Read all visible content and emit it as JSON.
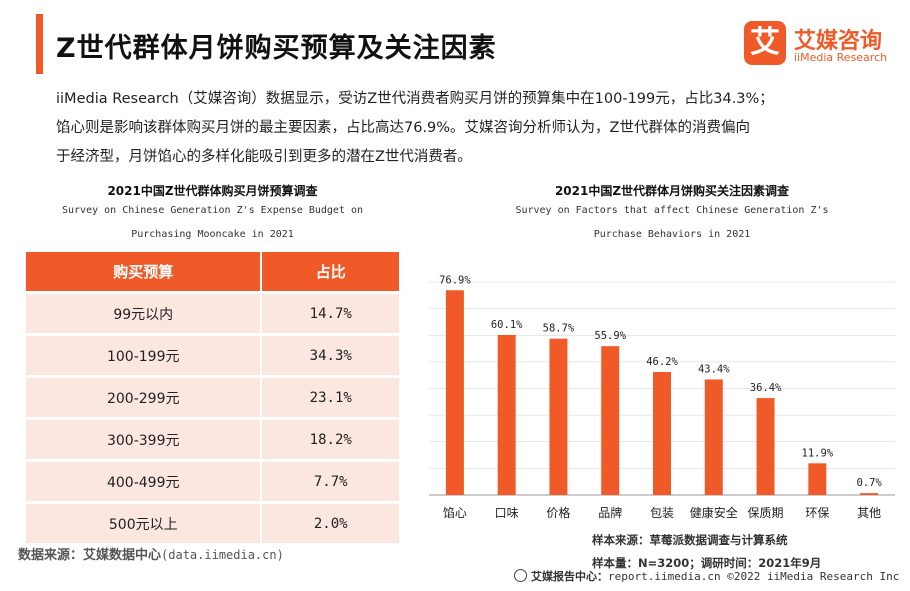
{
  "header": {
    "title": "Z世代群体月饼购买预算及关注因素",
    "logo_mark": "艾",
    "logo_cn": "艾媒咨询",
    "logo_en": "iiMedia Research"
  },
  "intro": {
    "line1": "iiMedia Research（艾媒咨询）数据显示，受访Z世代消费者购买月饼的预算集中在100-199元，占比34.3%；",
    "line2": "馅心则是影响该群体购买月饼的最主要因素，占比高达76.9%。艾媒咨询分析师认为，Z世代群体的消费偏向",
    "line3": "于经济型，月饼馅心的多样化能吸引到更多的潜在Z世代消费者。"
  },
  "left_panel": {
    "title": "2021中国Z世代群体购买月饼预算调查",
    "subtitle_line1": "Survey on Chinese Generation Z's Expense Budget on",
    "subtitle_line2": "Purchasing Mooncake in 2021",
    "source_label": "数据来源：艾媒数据中心",
    "source_domain": "(data.iimedia.cn)"
  },
  "right_panel": {
    "title": "2021中国Z世代群体月饼购买关注因素调查",
    "subtitle_line1": "Survey on Factors that affect  Chinese Generation Z's",
    "subtitle_line2": "Purchase Behaviors in 2021",
    "sample_source": "样本来源：草莓派数据调查与计算系统",
    "sample_size": "样本量：N=3200；调研时间：2021年9月"
  },
  "footer": {
    "label": "艾媒报告中心：",
    "text": "report.iimedia.cn  ©2022  iiMedia Research  Inc"
  },
  "chart_data": [
    {
      "type": "table",
      "columns": [
        "购买预算",
        "占比"
      ],
      "rows": [
        [
          "99元以内",
          "14.7%"
        ],
        [
          "100-199元",
          "34.3%"
        ],
        [
          "200-299元",
          "23.1%"
        ],
        [
          "300-399元",
          "18.2%"
        ],
        [
          "400-499元",
          "7.7%"
        ],
        [
          "500元以上",
          "2.0%"
        ]
      ]
    },
    {
      "type": "bar",
      "categories": [
        "馅心",
        "口味",
        "价格",
        "品牌",
        "包装",
        "健康安全",
        "保质期",
        "环保",
        "其他"
      ],
      "values": [
        76.9,
        60.1,
        58.7,
        55.9,
        46.2,
        43.4,
        36.4,
        11.9,
        0.7
      ],
      "value_labels": [
        "76.9%",
        "60.1%",
        "58.7%",
        "55.9%",
        "46.2%",
        "43.4%",
        "36.4%",
        "11.9%",
        "0.7%"
      ],
      "ylim": [
        0,
        80
      ],
      "grid": true,
      "colors": {
        "bar": "#f05a28",
        "grid": "#d0d0d0"
      }
    }
  ]
}
